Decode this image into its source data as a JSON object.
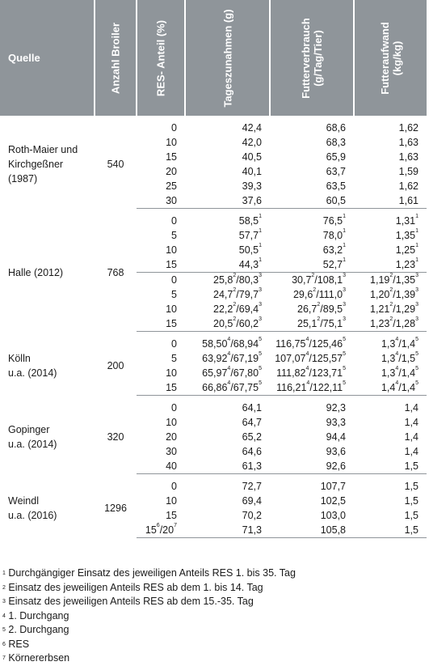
{
  "headers": {
    "quelle": "Quelle",
    "anzahl": "Anzahl Broiler",
    "res": "RES- Anteil (%)",
    "tageszunahmen": "Tageszunahmen (g)",
    "futterverbrauch_l1": "Futterverbrauch",
    "futterverbrauch_l2": "(g/Tag/Tier)",
    "futteraufwand_l1": "Futteraufwand",
    "futteraufwand_l2": "(kg/kg)"
  },
  "studies": [
    {
      "source_lines": [
        "Roth-Maier und",
        "Kirchgeßner",
        "(1987)"
      ],
      "count": "540",
      "rows": [
        {
          "res": "0",
          "tz": "42,4",
          "fv": "68,6",
          "fa": "1,62"
        },
        {
          "res": "10",
          "tz": "42,0",
          "fv": "68,3",
          "fa": "1,63"
        },
        {
          "res": "15",
          "tz": "40,5",
          "fv": "65,9",
          "fa": "1,63"
        },
        {
          "res": "20",
          "tz": "40,1",
          "fv": "63,7",
          "fa": "1,59"
        },
        {
          "res": "25",
          "tz": "39,3",
          "fv": "63,5",
          "fa": "1,62"
        },
        {
          "res": "30",
          "tz": "37,6",
          "fv": "60,5",
          "fa": "1,61"
        }
      ]
    },
    {
      "source_lines": [
        "Halle (2012)"
      ],
      "count": "768",
      "rows": [
        {
          "res": "0",
          "tz": "58,5¹",
          "fv": "76,5¹",
          "fa": "1,31¹"
        },
        {
          "res": "5",
          "tz": "57,7¹",
          "fv": "78,0¹",
          "fa": "1,35¹"
        },
        {
          "res": "10",
          "tz": "50,5¹",
          "fv": "63,2¹",
          "fa": "1,25¹"
        },
        {
          "res": "15",
          "tz": "44,3¹",
          "fv": "52,7¹",
          "fa": "1,23¹"
        },
        {
          "res": "0",
          "tz": "25,8²/80,3³",
          "fv": "30,7²/108,1³",
          "fa": "1,19²/1,35³"
        },
        {
          "res": "5",
          "tz": "24,7²/79,7³",
          "fv": "29,6²/111,0³",
          "fa": "1,20²/1,39³"
        },
        {
          "res": "10",
          "tz": "22,2²/69,4³",
          "fv": "26,7²/89,5³",
          "fa": "1,21²/1,29³"
        },
        {
          "res": "15",
          "tz": "20,5²/60,2³",
          "fv": "25,1²/75,1³",
          "fa": "1,23²/1,28³"
        }
      ]
    },
    {
      "source_lines": [
        "Kölln",
        "u.a. (2014)"
      ],
      "count": "200",
      "rows": [
        {
          "res": "0",
          "tz": "58,50⁴/68,94⁵",
          "fv": "116,75⁴/125,46⁵",
          "fa": "1,3⁴/1,4⁵"
        },
        {
          "res": "5",
          "tz": "63,92⁴/67,19⁵",
          "fv": "107,07⁴/125,57⁵",
          "fa": "1,3⁴/1,5⁵"
        },
        {
          "res": "10",
          "tz": "65,97⁴/67,80⁵",
          "fv": "111,82⁴/123,71⁵",
          "fa": "1,3⁴/1,4⁵"
        },
        {
          "res": "15",
          "tz": "66,86⁴/67,75⁵",
          "fv": "116,21⁴/122,11⁵",
          "fa": "1,4⁴/1,4⁵"
        }
      ]
    },
    {
      "source_lines": [
        "Gopinger",
        "u.a. (2014)"
      ],
      "count": "320",
      "rows": [
        {
          "res": "0",
          "tz": "64,1",
          "fv": "92,3",
          "fa": "1,4"
        },
        {
          "res": "10",
          "tz": "64,7",
          "fv": "93,3",
          "fa": "1,4"
        },
        {
          "res": "20",
          "tz": "65,2",
          "fv": "94,4",
          "fa": "1,4"
        },
        {
          "res": "30",
          "tz": "64,6",
          "fv": "93,6",
          "fa": "1,4"
        },
        {
          "res": "40",
          "tz": "61,3",
          "fv": "92,6",
          "fa": "1,5"
        }
      ]
    },
    {
      "source_lines": [
        "Weindl",
        "u.a. (2016)"
      ],
      "count": "1296",
      "rows": [
        {
          "res": "0",
          "tz": "72,7",
          "fv": "107,7",
          "fa": "1,5"
        },
        {
          "res": "10",
          "tz": "69,4",
          "fv": "102,5",
          "fa": "1,5"
        },
        {
          "res": "15",
          "tz": "70,2",
          "fv": "103,0",
          "fa": "1,5"
        },
        {
          "res": "15⁶/20⁷",
          "tz": "71,3",
          "fv": "105,8",
          "fa": "1,5"
        }
      ]
    }
  ],
  "footnotes": [
    {
      "mark": "1",
      "text": " Durchgängiger Einsatz des jeweiligen Anteils RES 1. bis 35. Tag"
    },
    {
      "mark": "2",
      "text": " Einsatz des jeweiligen Anteils RES ab dem 1. bis 14. Tag"
    },
    {
      "mark": "3",
      "text": " Einsatz des jeweiligen Anteils RES ab dem 15.-35. Tag"
    },
    {
      "mark": "4",
      "text": " 1. Durchgang"
    },
    {
      "mark": "5",
      "text": " 2. Durchgang"
    },
    {
      "mark": "6",
      "text": " RES"
    },
    {
      "mark": "7",
      "text": " Körnererbsen"
    }
  ]
}
